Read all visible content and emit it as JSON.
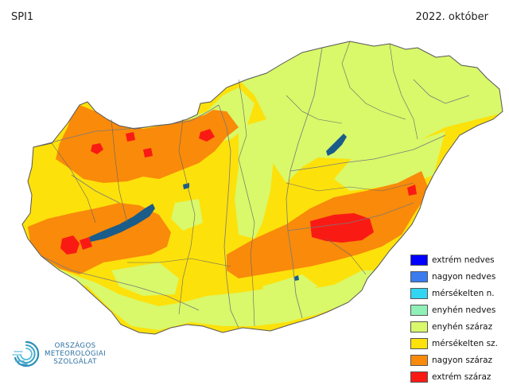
{
  "header": {
    "index_label": "SPI1",
    "period": "2022. október"
  },
  "legend": {
    "items": [
      {
        "label": "extrém nedves",
        "color": "#0000ff"
      },
      {
        "label": "nagyon nedves",
        "color": "#3a7cf0"
      },
      {
        "label": "mérsékelten n.",
        "color": "#33d6f2"
      },
      {
        "label": "enyhén nedves",
        "color": "#8ff0b8"
      },
      {
        "label": "enyhén száraz",
        "color": "#d9f86a"
      },
      {
        "label": "mérsékelten sz.",
        "color": "#fde10a"
      },
      {
        "label": "nagyon száraz",
        "color": "#f98a0a"
      },
      {
        "label": "extrém száraz",
        "color": "#fa1a14"
      }
    ]
  },
  "logo": {
    "line1": "ORSZÁGOS",
    "line2": "METEOROLÓGIAI",
    "line3": "SZOLGÁLAT",
    "icon": "omsz-swirl-logo"
  },
  "map_colors": {
    "lake": "#1a5c8a",
    "border": "#666666",
    "river": "#7a7a7a"
  }
}
